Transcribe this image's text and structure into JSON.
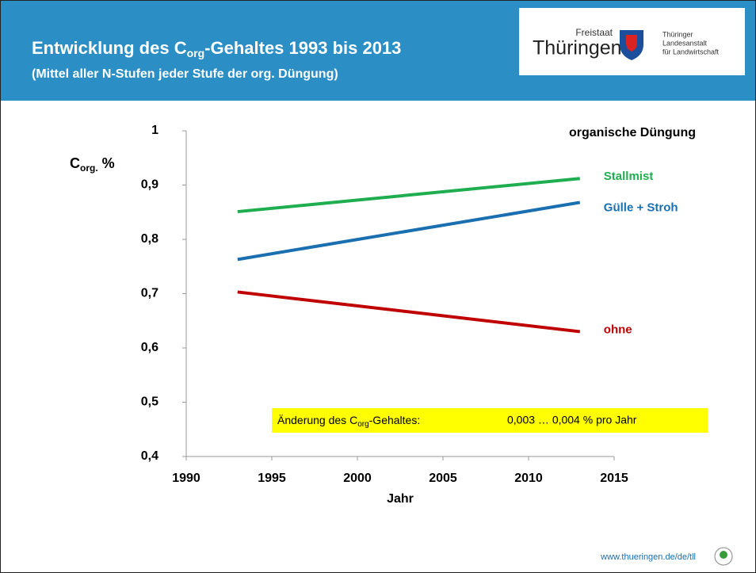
{
  "header": {
    "title_parts": [
      "Entwicklung des C",
      "org",
      "-Gehaltes 1993 bis 2013"
    ],
    "subtitle": "(Mittel aller N-Stufen  jeder Stufe der org. Düngung)"
  },
  "logo": {
    "small": "Freistaat",
    "big": "Thüringen",
    "lines": [
      "Thüringer",
      "Landesanstalt",
      "für Landwirtschaft"
    ]
  },
  "chart_data": {
    "type": "line",
    "y_label_parts": [
      "C",
      "org.",
      " %"
    ],
    "x_label": "Jahr",
    "legend_title": "organische Düngung",
    "x": [
      1993,
      2013
    ],
    "series": [
      {
        "name": "Stallmist",
        "color": "#1fae4f",
        "values": [
          0.851,
          0.912
        ]
      },
      {
        "name": "Gülle + Stroh",
        "color": "#1a6fb0",
        "values": [
          0.763,
          0.868
        ]
      },
      {
        "name": "ohne",
        "color": "#c00000",
        "values": [
          0.703,
          0.63
        ]
      }
    ],
    "xlim": [
      1990,
      2015
    ],
    "xticks": [
      1990,
      1995,
      2000,
      2005,
      2010,
      2015
    ],
    "ylim": [
      0.4,
      1
    ],
    "yticks": [
      {
        "value": 0.4,
        "label": "0,4"
      },
      {
        "value": 0.5,
        "label": "0,5"
      },
      {
        "value": 0.6,
        "label": "0,6"
      },
      {
        "value": 0.7,
        "label": "0,7"
      },
      {
        "value": 0.8,
        "label": "0,8"
      },
      {
        "value": 0.9,
        "label": "0,9"
      },
      1
    ],
    "annotation": {
      "parts": [
        "Änderung des C",
        "org",
        "-Gehaltes:"
      ],
      "rate": "0,003 … 0,004 % pro Jahr"
    }
  },
  "footer": {
    "url": "www.thueringen.de/de/tll"
  }
}
